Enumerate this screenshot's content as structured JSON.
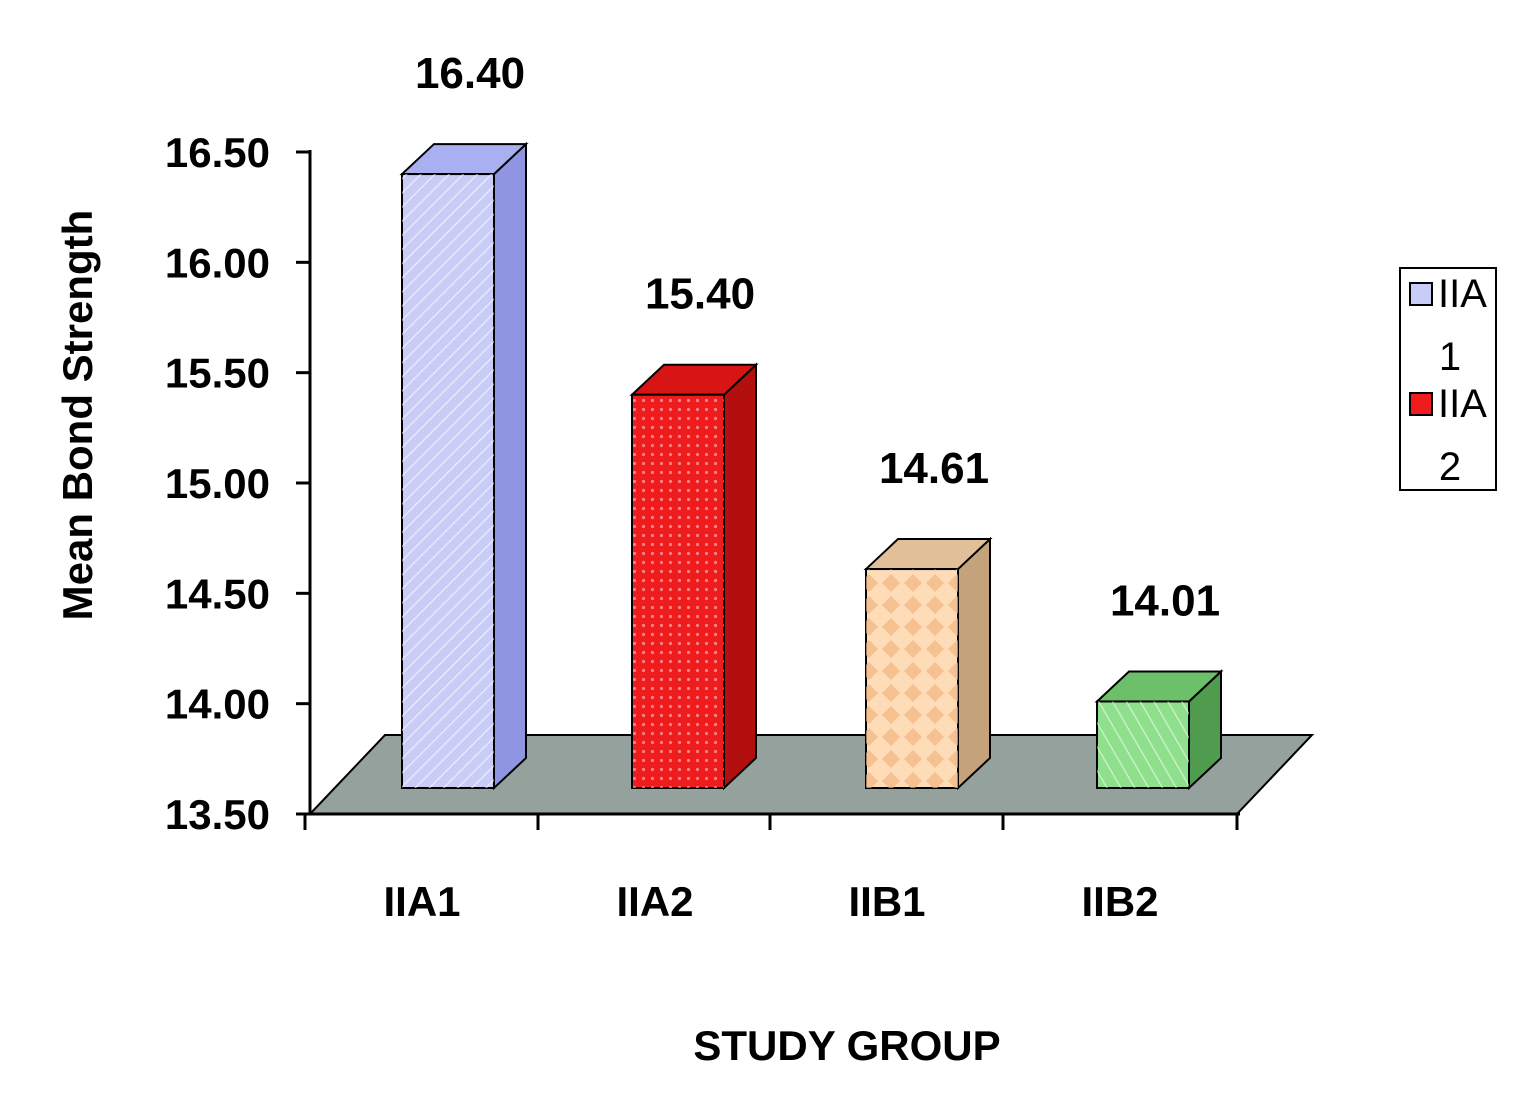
{
  "chart_data": {
    "type": "bar",
    "style": "3d-column",
    "categories": [
      "IIA1",
      "IIA2",
      "IIB1",
      "IIB2"
    ],
    "values": [
      16.4,
      15.4,
      14.61,
      14.01
    ],
    "value_labels": [
      "16.40",
      "15.40",
      "14.61",
      "14.01"
    ],
    "colors": [
      "#c8ccf6",
      "#ee1c1c",
      "#ffdcb8",
      "#8ee08c"
    ],
    "side_colors": [
      "#8f95e0",
      "#b30f0f",
      "#c4a27c",
      "#4f9c4e"
    ],
    "top_colors": [
      "#a9aff0",
      "#d81414",
      "#e0bf99",
      "#6cc06a"
    ],
    "xlabel": "STUDY GROUP",
    "ylabel": "Mean Bond Strength",
    "ylim": [
      13.5,
      16.5
    ],
    "yticks": [
      "13.50",
      "14.00",
      "14.50",
      "15.00",
      "15.50",
      "16.00",
      "16.50"
    ],
    "grid": false,
    "floor_color": "#95a19c",
    "legend": {
      "placement": "right",
      "entries": [
        {
          "label_line1": "IIA",
          "label_line2": "1",
          "color": "#c8ccf6"
        },
        {
          "label_line1": "IIA",
          "label_line2": "2",
          "color": "#ee1c1c"
        }
      ]
    }
  }
}
